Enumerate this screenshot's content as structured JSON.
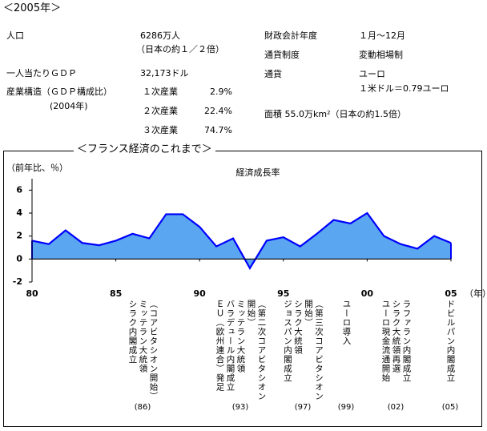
{
  "header": {
    "title": "＜2005年＞"
  },
  "profile": {
    "population": {
      "label": "人口",
      "value": "6286万人",
      "note": "（日本の約１／２倍）"
    },
    "gdp_per_capita": {
      "label": "一人当たりＧＤＰ",
      "value": "32,173ドル"
    },
    "industry": {
      "label": "産業構造（ＧＤＰ構成比）",
      "note": "(2004年)",
      "rows": [
        [
          "１次産業",
          "2.9%"
        ],
        [
          "２次産業",
          "22.4%"
        ],
        [
          "３次産業",
          "74.7%"
        ]
      ]
    },
    "fiscal_year": {
      "label": "財政会計年度",
      "value": "１月〜12月"
    },
    "currency_system": {
      "label": "通貨制度",
      "value": "変動相場制"
    },
    "currency": {
      "label": "通貨",
      "value": "ユーロ",
      "note": "１米ドル＝0.79ユーロ"
    },
    "area": "面積 55.0万km²（日本の約1.5倍）"
  },
  "chart_data": {
    "type": "area",
    "section_title": "＜フランス経済のこれまで＞",
    "title": "経済成長率",
    "ylabel": "（前年比、％）",
    "xlabel": "（年）",
    "x": [
      1980,
      1981,
      1982,
      1983,
      1984,
      1985,
      1986,
      1987,
      1988,
      1989,
      1990,
      1991,
      1992,
      1993,
      1994,
      1995,
      1996,
      1997,
      1998,
      1999,
      2000,
      2001,
      2002,
      2003,
      2004,
      2005
    ],
    "values": [
      1.6,
      1.3,
      2.5,
      1.4,
      1.2,
      1.6,
      2.2,
      1.8,
      3.9,
      3.9,
      2.8,
      1.1,
      1.8,
      -0.8,
      1.6,
      1.9,
      1.1,
      2.2,
      3.4,
      3.1,
      4.0,
      2.0,
      1.3,
      0.9,
      2.0,
      1.4
    ],
    "color": "#5aa6f0",
    "line_color": "#0000ff",
    "xlim": [
      1980,
      2005
    ],
    "xticks": [
      {
        "value": 1980,
        "label": "80"
      },
      {
        "value": 1985,
        "label": "85"
      },
      {
        "value": 1990,
        "label": "90"
      },
      {
        "value": 1995,
        "label": "95"
      },
      {
        "value": 2000,
        "label": "00"
      },
      {
        "value": 2005,
        "label": "05"
      }
    ],
    "ylim": [
      -2,
      7
    ],
    "yticks": [
      -2,
      0,
      2,
      4,
      6
    ],
    "annotations": [
      {
        "lines": [
          "（コアビタシオン開始）",
          "ミッテラン大統領",
          "シラク内閣成立"
        ],
        "label": "(86)"
      },
      {
        "lines": [
          "（第二次コアビタシオン",
          "開始）",
          "ミッテラン大統領",
          "バラデュール内閣成立",
          "ＥＵ（欧州連合）発足"
        ],
        "label": "(93)"
      },
      {
        "lines": [
          "（第三次コアビタシオン",
          "開始）",
          "シラク大統領",
          "ジョスパン内閣成立"
        ],
        "label": "(97)"
      },
      {
        "lines": [
          "ユーロ導入"
        ],
        "label": "(99)"
      },
      {
        "lines": [
          "ラファラン内閣成立",
          "シラク大統領再選",
          "ユーロ現金流通開始"
        ],
        "label": "(02)"
      },
      {
        "lines": [
          "ドビルパン内閣成立"
        ],
        "label": "(05)"
      }
    ]
  }
}
